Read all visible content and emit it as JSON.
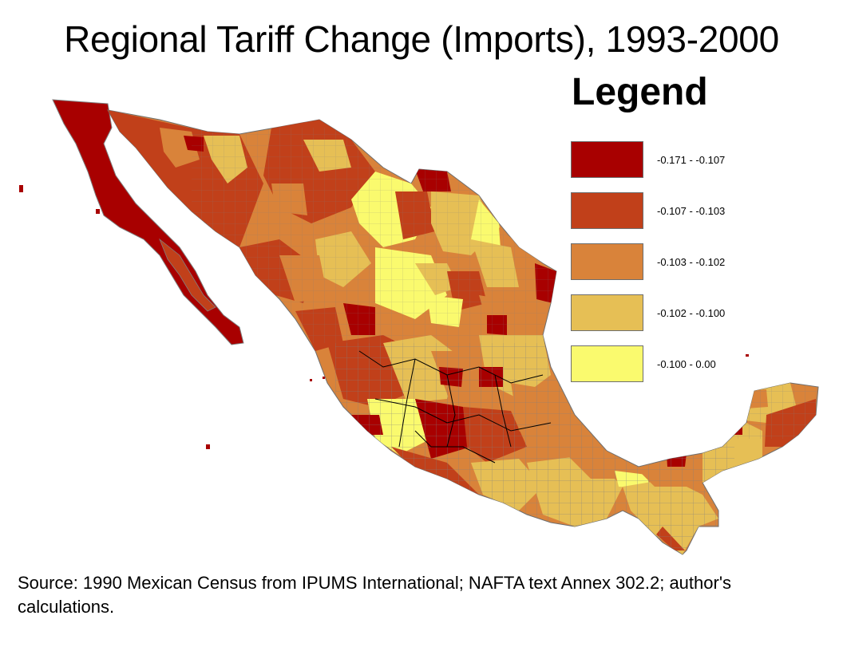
{
  "title": "Regional Tariff Change (Imports), 1993-2000",
  "legend": {
    "title": "Legend",
    "items": [
      {
        "label": "-0.171 - -0.107",
        "color": "#a80000"
      },
      {
        "label": "-0.107 - -0.103",
        "color": "#c1401a"
      },
      {
        "label": "-0.103 - -0.102",
        "color": "#d9833a"
      },
      {
        "label": "-0.102 - -0.100",
        "color": "#e6bf55"
      },
      {
        "label": "-0.100 - 0.00",
        "color": "#fafa6e"
      }
    ]
  },
  "source": "Source: 1990 Mexican Census from IPUMS International; NAFTA text Annex 302.2; author's calculations.",
  "map": {
    "region": "Mexico",
    "boundary_color": "#7f7f7f",
    "state_boundary_color": "#000000"
  }
}
